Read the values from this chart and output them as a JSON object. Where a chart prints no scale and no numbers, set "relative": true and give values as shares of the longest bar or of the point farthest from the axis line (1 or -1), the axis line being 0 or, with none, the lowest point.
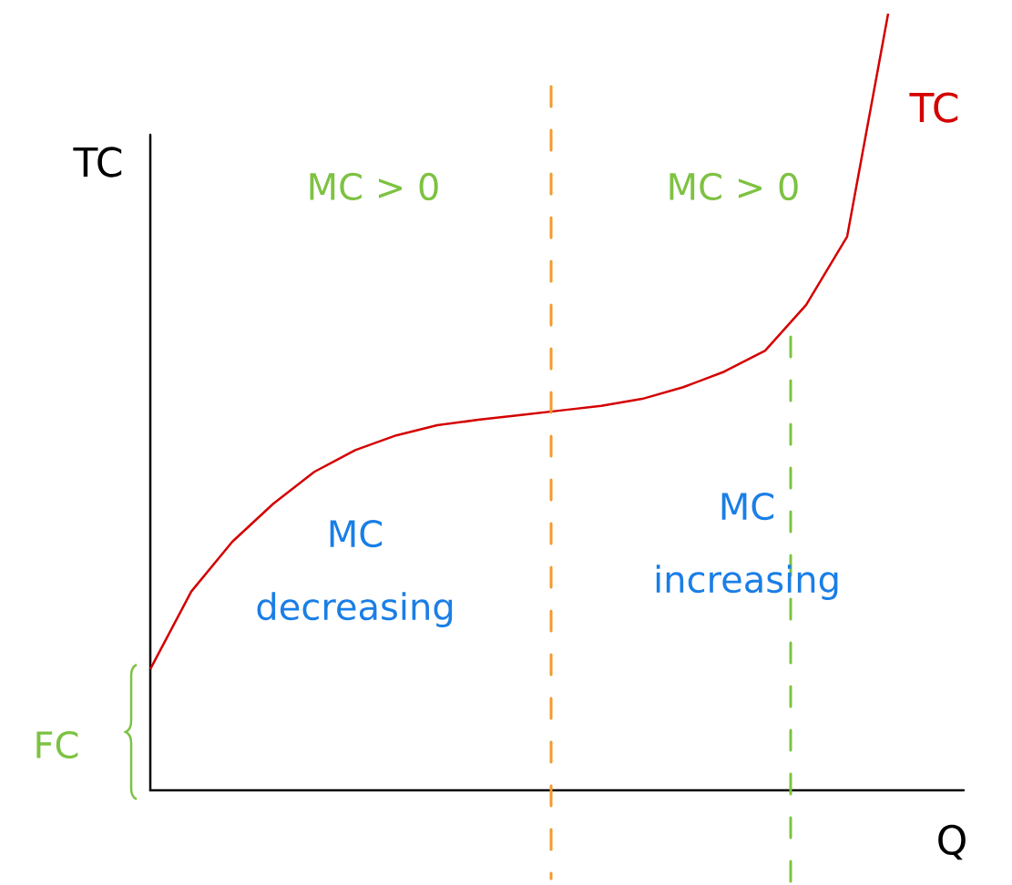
{
  "chart_data": {
    "type": "line",
    "relative": true,
    "xlabel": "Q",
    "ylabel": "TC",
    "categories": [
      null,
      null,
      null,
      null,
      null,
      null,
      null,
      null,
      null,
      null,
      null,
      null,
      null,
      null,
      null,
      null,
      null,
      null,
      null
    ],
    "series": [
      {
        "name": "TC",
        "color": "#d40000",
        "values": [
          0.156,
          0.256,
          0.32,
          0.369,
          0.41,
          0.438,
          0.457,
          0.47,
          0.477,
          0.483,
          0.489,
          0.495,
          0.504,
          0.519,
          0.539,
          0.566,
          0.625,
          0.713,
          1.0
        ]
      }
    ],
    "annotations": [
      "MC > 0",
      "MC > 0",
      "MC decreasing",
      "MC increasing",
      "FC"
    ]
  }
}
